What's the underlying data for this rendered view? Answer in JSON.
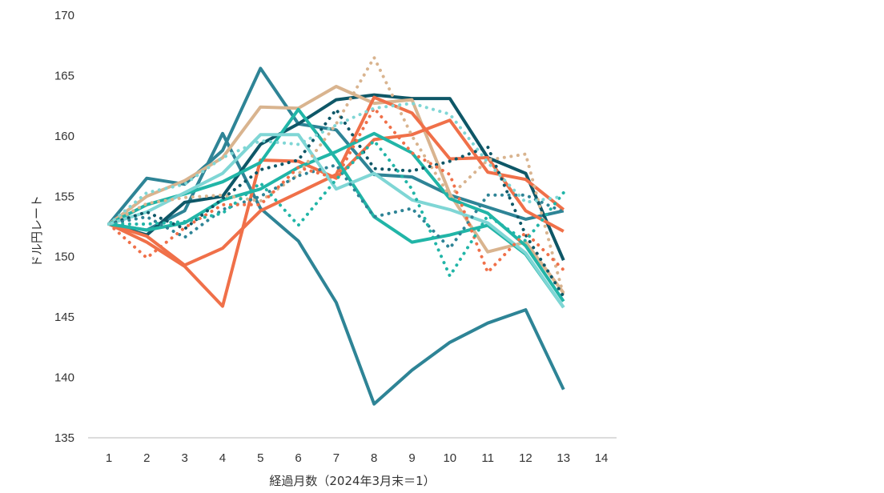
{
  "chart_data": {
    "type": "line",
    "title": "",
    "xlabel": "経過月数（2024年3月末＝1）",
    "ylabel": "ドル円レート",
    "x_ticks": [
      1,
      2,
      3,
      4,
      5,
      6,
      7,
      8,
      9,
      10,
      11,
      12,
      13,
      14
    ],
    "y_ticks": [
      135,
      140,
      145,
      150,
      155,
      160,
      165,
      170
    ],
    "xlim": [
      0.45,
      14.4
    ],
    "ylim": [
      135,
      170
    ],
    "legend": "none",
    "grid": "none",
    "x": [
      1,
      2,
      3,
      4,
      5,
      6,
      7,
      8,
      9,
      10,
      11,
      12,
      13
    ],
    "series": [
      {
        "color": "#2e8496",
        "style": "solid",
        "values": [
          152.7,
          152.2,
          153.8,
          160.2,
          154.0,
          151.3,
          146.2,
          137.8,
          140.6,
          142.9,
          144.5,
          145.6,
          139.0
        ]
      },
      {
        "color": "#2e8496",
        "style": "solid",
        "values": [
          152.7,
          156.5,
          156.0,
          158.8,
          165.6,
          161.0,
          160.5,
          156.8,
          156.6,
          155.1,
          154.1,
          153.1,
          153.8
        ]
      },
      {
        "color": "#0e5767",
        "style": "solid",
        "values": [
          152.7,
          151.8,
          154.5,
          155.0,
          159.3,
          161.0,
          163.0,
          163.4,
          163.1,
          163.1,
          158.2,
          156.9,
          149.7
        ]
      },
      {
        "color": "#d9b48f",
        "style": "solid",
        "values": [
          152.7,
          155.0,
          156.3,
          158.2,
          162.4,
          162.3,
          164.1,
          162.7,
          163.0,
          155.2,
          150.4,
          151.2,
          147.0
        ]
      },
      {
        "color": "#f07049",
        "style": "solid",
        "values": [
          152.7,
          151.7,
          149.3,
          150.7,
          153.8,
          155.3,
          156.8,
          163.2,
          161.9,
          158.1,
          158.2,
          153.8,
          152.1
        ]
      },
      {
        "color": "#f07049",
        "style": "solid",
        "values": [
          152.7,
          151.2,
          149.2,
          145.9,
          158.0,
          157.9,
          156.5,
          159.7,
          160.1,
          161.3,
          157.0,
          156.4,
          153.9
        ]
      },
      {
        "color": "#21b5a7",
        "style": "solid",
        "values": [
          152.7,
          154.3,
          155.2,
          156.2,
          157.8,
          162.2,
          158.1,
          153.3,
          151.2,
          151.8,
          152.6,
          150.2,
          145.8
        ]
      },
      {
        "color": "#21b5a7",
        "style": "solid",
        "values": [
          152.7,
          152.2,
          152.8,
          154.7,
          155.6,
          157.4,
          158.7,
          160.2,
          158.6,
          154.8,
          153.6,
          150.9,
          146.3
        ]
      },
      {
        "color": "#7fd6d5",
        "style": "solid",
        "values": [
          152.7,
          153.7,
          155.3,
          156.9,
          160.1,
          160.1,
          155.6,
          156.9,
          154.7,
          153.9,
          152.8,
          150.3,
          145.8
        ]
      },
      {
        "color": "#d9b48f",
        "style": "dotted",
        "values": [
          152.7,
          154.4,
          154.9,
          155.1,
          154.6,
          156.8,
          161.0,
          166.5,
          160.0,
          155.0,
          158.0,
          158.5,
          146.8
        ]
      },
      {
        "color": "#0e5767",
        "style": "dotted",
        "values": [
          152.7,
          153.7,
          152.3,
          154.8,
          157.2,
          158.0,
          162.2,
          157.3,
          157.1,
          157.9,
          159.1,
          151.8,
          146.7
        ]
      },
      {
        "color": "#2e8496",
        "style": "dotted",
        "values": [
          152.7,
          153.3,
          151.6,
          153.9,
          155.0,
          156.7,
          157.6,
          153.3,
          154.0,
          150.7,
          155.1,
          155.1,
          153.7
        ]
      },
      {
        "color": "#f07049",
        "style": "dotted",
        "values": [
          152.7,
          149.9,
          152.4,
          154.3,
          154.3,
          157.4,
          156.5,
          162.3,
          158.6,
          156.8,
          148.7,
          152.0,
          148.9
        ]
      },
      {
        "color": "#21b5a7",
        "style": "dotted",
        "values": [
          152.7,
          152.7,
          152.9,
          153.6,
          156.1,
          152.6,
          156.4,
          159.6,
          155.6,
          148.4,
          153.4,
          151.3,
          155.3
        ]
      },
      {
        "color": "#7fd6d5",
        "style": "dotted",
        "values": [
          152.7,
          155.3,
          156.0,
          158.2,
          159.6,
          159.3,
          160.9,
          162.3,
          162.7,
          161.8,
          157.8,
          154.5,
          155.0
        ]
      }
    ]
  }
}
